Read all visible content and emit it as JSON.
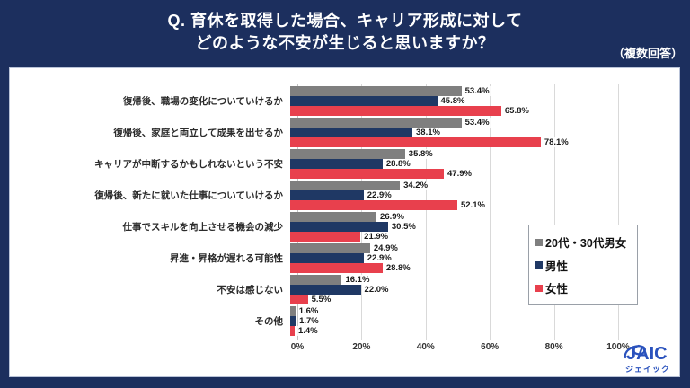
{
  "header": {
    "title_line1": "Q. 育休を取得した場合、キャリア形成に対して",
    "title_line2": "どのような不安が生じると思いますか？",
    "note": "（複数回答）"
  },
  "chart_data": {
    "type": "bar",
    "orientation": "horizontal",
    "title": "Q. 育休を取得した場合、キャリア形成に対してどのような不安が生じると思いますか？（複数回答）",
    "categories": [
      "復帰後、職場の変化についていけるか",
      "復帰後、家庭と両立して成果を出せるか",
      "キャリアが中断するかもしれないという不安",
      "復帰後、新たに就いた仕事についていけるか",
      "仕事でスキルを向上させる機会の減少",
      "昇進・昇格が遅れる可能性",
      "不安は感じない",
      "その他"
    ],
    "series": [
      {
        "name": "20代・30代男女",
        "color": "#7f7f7f",
        "values": [
          53.4,
          53.4,
          35.8,
          34.2,
          26.9,
          24.9,
          16.1,
          1.6
        ]
      },
      {
        "name": "男性",
        "color": "#1f3864",
        "values": [
          45.8,
          38.1,
          28.8,
          22.9,
          30.5,
          22.9,
          22.0,
          1.7
        ]
      },
      {
        "name": "女性",
        "color": "#e8404d",
        "values": [
          65.8,
          78.1,
          47.9,
          52.1,
          21.9,
          28.8,
          5.5,
          1.4
        ]
      }
    ],
    "xlim": [
      0,
      100
    ],
    "x_ticks": [
      "0%",
      "20%",
      "40%",
      "60%",
      "80%",
      "100%"
    ],
    "value_suffix": "%",
    "grid": true,
    "legend_position": "right-middle"
  },
  "logo": {
    "name": "JAIC",
    "subtitle": "ジェイック",
    "color": "#2a52bd"
  },
  "colors": {
    "background": "#1c2f5e",
    "panel": "#ffffff",
    "series_gray": "#7f7f7f",
    "series_navy": "#1f3864",
    "series_red": "#e8404d"
  }
}
